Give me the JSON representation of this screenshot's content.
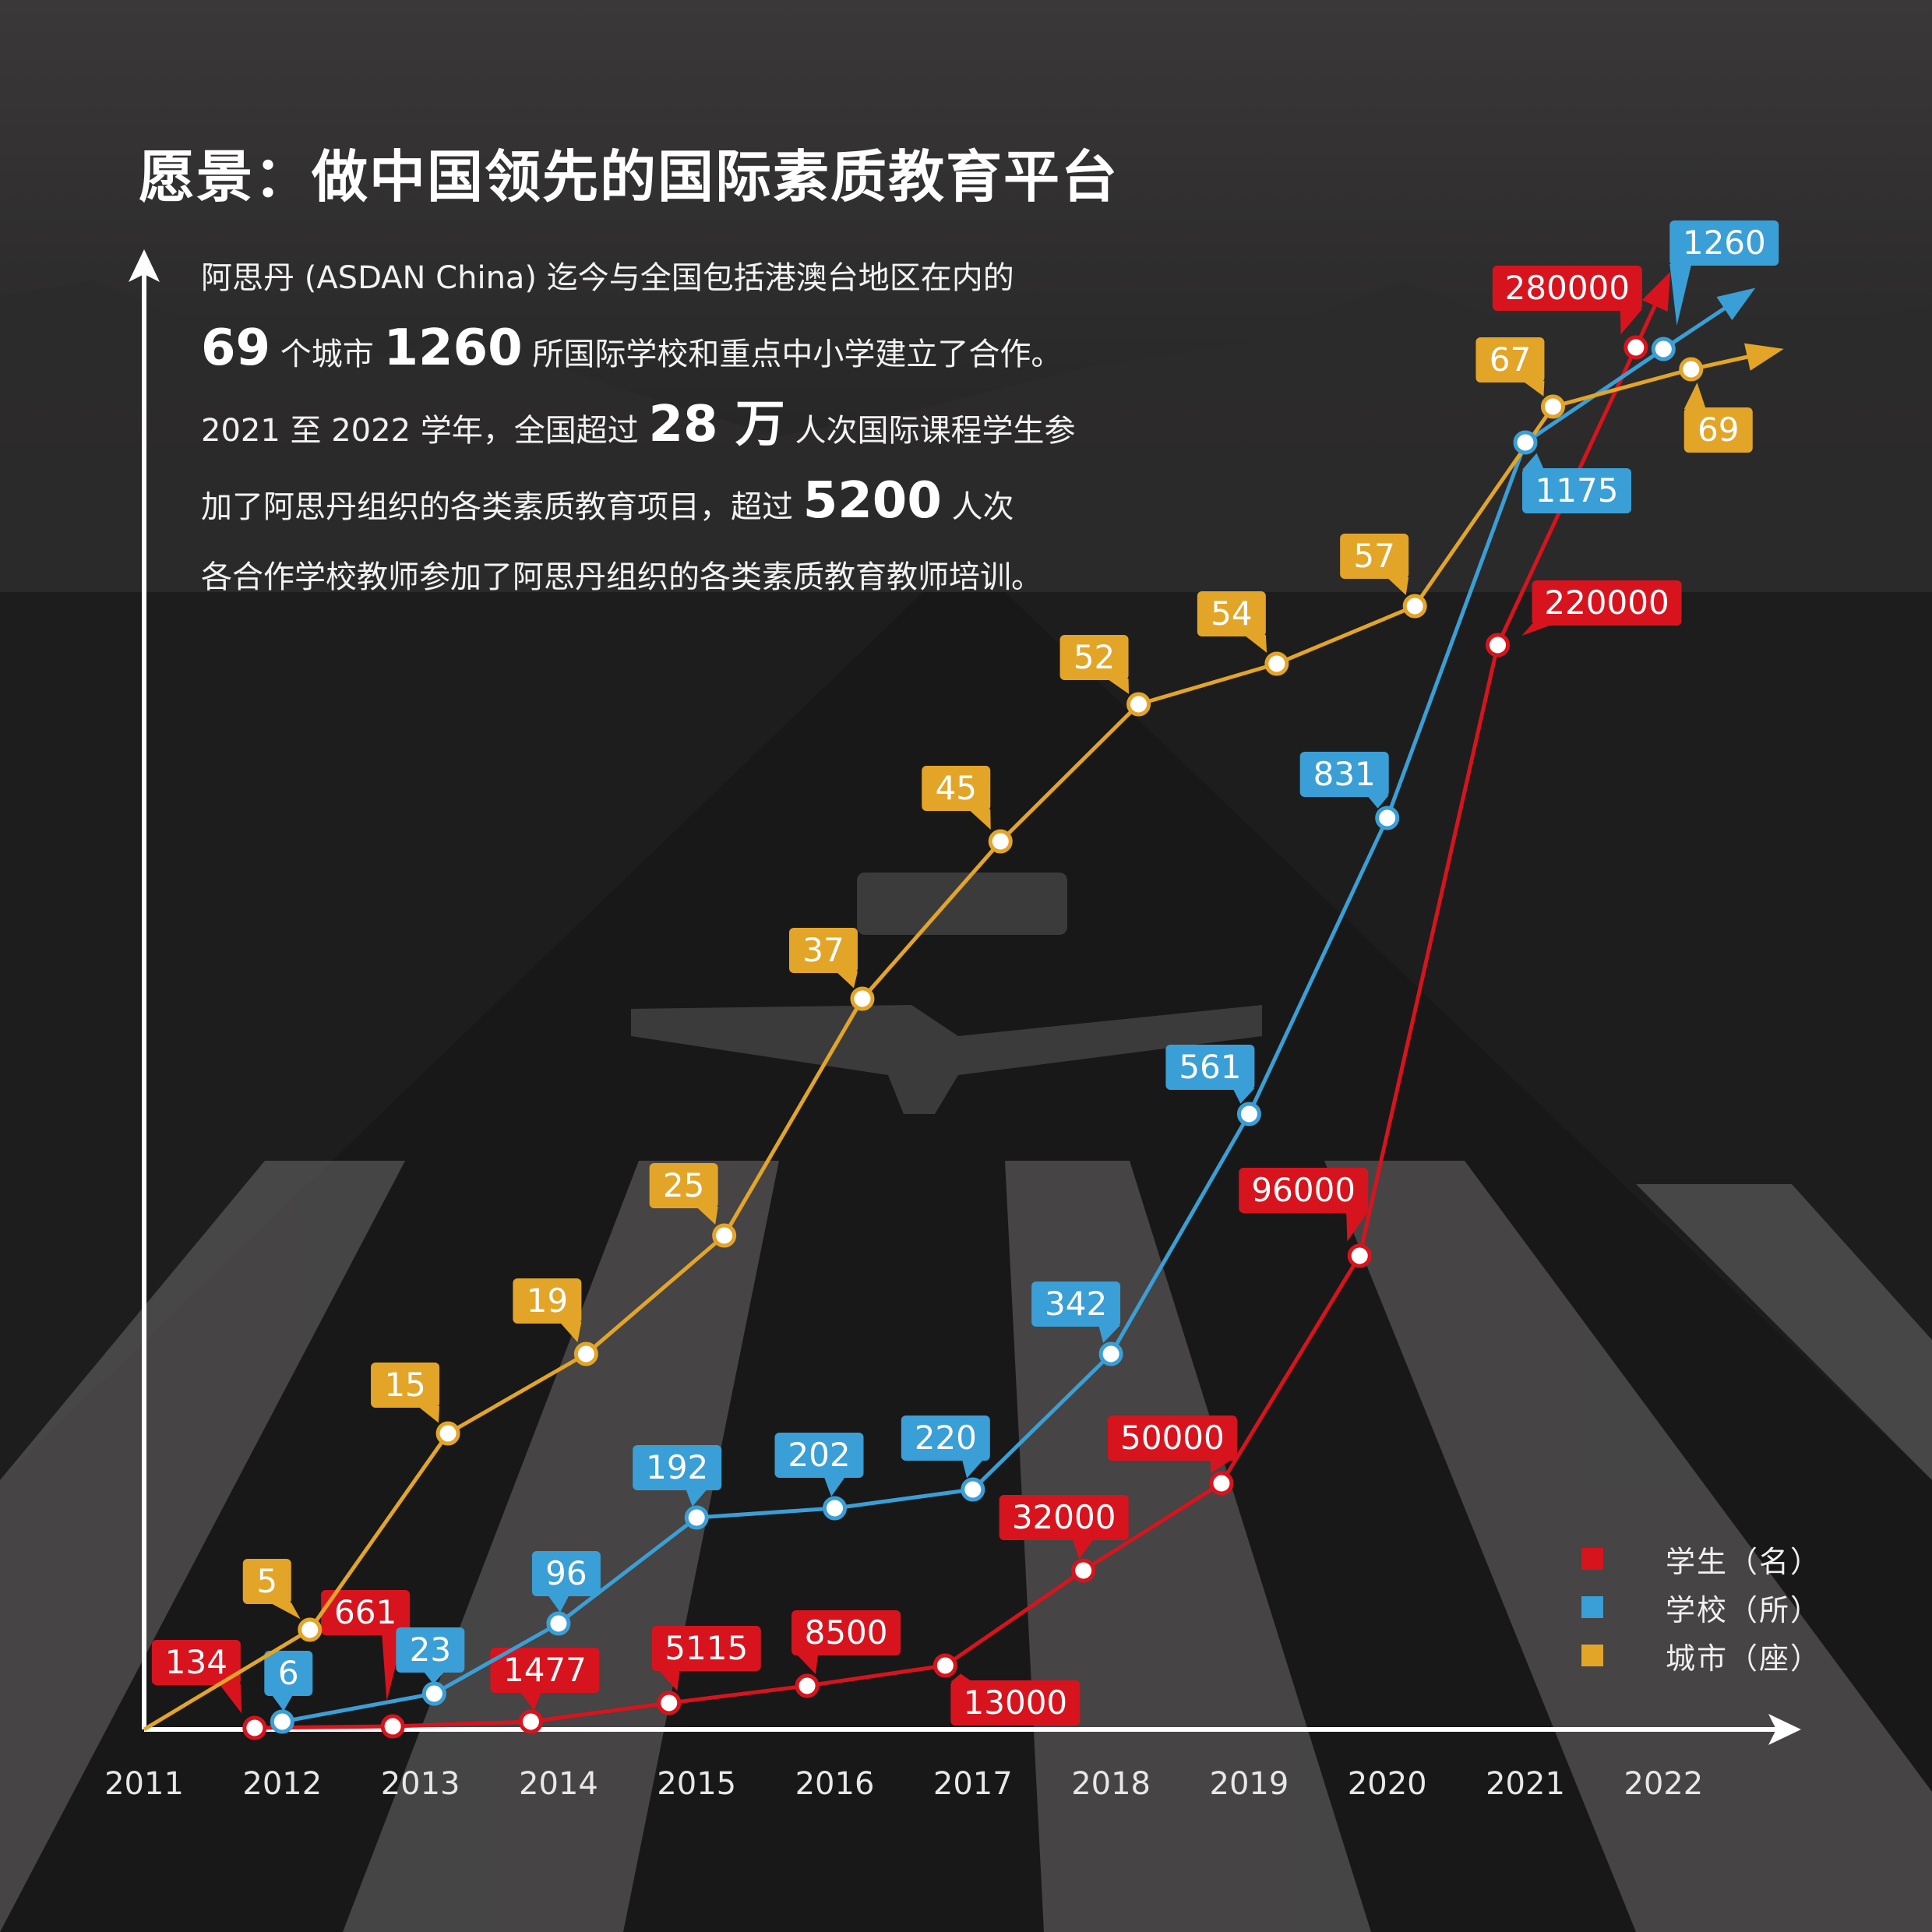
{
  "title": "愿景：做中国领先的国际素质教育平台",
  "intro": {
    "l1": "阿思丹 (ASDAN China) 迄今与全国包括港澳台地区在内的",
    "l2_num1": "69",
    "l2_t1": " 个城市 ",
    "l2_num2": "1260",
    "l2_t2": " 所国际学校和重点中小学建立了合作。",
    "l3_t1": "2021 至 2022 学年，全国超过 ",
    "l3_num": "28 万",
    "l3_t2": " 人次国际课程学生参",
    "l4_t1": "加了阿思丹组织的各类素质教育项目，超过 ",
    "l4_num": "5200",
    "l4_t2": " 人次",
    "l5": "各合作学校教师参加了阿思丹组织的各类素质教育教师培训。"
  },
  "legend": [
    {
      "label": "学生（名）",
      "color": "#d7141e"
    },
    {
      "label": "学校（所）",
      "color": "#3a9fd6"
    },
    {
      "label": "城市（座）",
      "color": "#e3a528"
    }
  ],
  "chart_data": {
    "type": "line",
    "x_ticks": [
      "2011",
      "2012",
      "2013",
      "2014",
      "2015",
      "2016",
      "2017",
      "2018",
      "2019",
      "2020",
      "2021",
      "2022"
    ],
    "series": [
      {
        "name": "学生（名）",
        "color": "#d7141e",
        "points": [
          {
            "x": 2011.8,
            "label": "134"
          },
          {
            "x": 2012.8,
            "label": "661"
          },
          {
            "x": 2013.8,
            "label": "1477"
          },
          {
            "x": 2014.8,
            "label": "5115"
          },
          {
            "x": 2015.8,
            "label": "8500"
          },
          {
            "x": 2016.8,
            "label": "13000"
          },
          {
            "x": 2017.8,
            "label": "32000"
          },
          {
            "x": 2018.8,
            "label": "50000"
          },
          {
            "x": 2019.8,
            "label": "96000"
          },
          {
            "x": 2020.8,
            "label": "220000"
          },
          {
            "x": 2021.8,
            "label": "280000"
          }
        ]
      },
      {
        "name": "学校（所）",
        "color": "#3a9fd6",
        "points": [
          {
            "x": 2012.0,
            "label": "6"
          },
          {
            "x": 2013.1,
            "label": "23"
          },
          {
            "x": 2014.0,
            "label": "96"
          },
          {
            "x": 2015.0,
            "label": "192"
          },
          {
            "x": 2016.0,
            "label": "202"
          },
          {
            "x": 2017.0,
            "label": "220"
          },
          {
            "x": 2018.0,
            "label": "342"
          },
          {
            "x": 2019.0,
            "label": "561"
          },
          {
            "x": 2020.0,
            "label": "831"
          },
          {
            "x": 2021.0,
            "label": "1175"
          },
          {
            "x": 2022.0,
            "label": "1260"
          }
        ]
      },
      {
        "name": "城市（座）",
        "color": "#e3a528",
        "points": [
          {
            "x": 2012.2,
            "label": "5"
          },
          {
            "x": 2013.2,
            "label": "15"
          },
          {
            "x": 2014.2,
            "label": "19"
          },
          {
            "x": 2015.2,
            "label": "25"
          },
          {
            "x": 2016.2,
            "label": "37"
          },
          {
            "x": 2017.2,
            "label": "45"
          },
          {
            "x": 2018.2,
            "label": "52"
          },
          {
            "x": 2019.2,
            "label": "54"
          },
          {
            "x": 2020.2,
            "label": "57"
          },
          {
            "x": 2021.2,
            "label": "67"
          },
          {
            "x": 2022.2,
            "label": "69"
          }
        ]
      }
    ]
  }
}
